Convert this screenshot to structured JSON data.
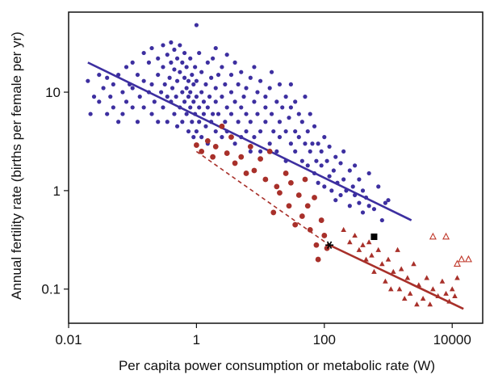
{
  "chart_data": {
    "type": "scatter",
    "title": "",
    "xlabel": "Per capita power consumption or metabolic rate (W)",
    "ylabel": "Annual fertility rate (births per female per yr)",
    "x_scale": "log",
    "y_scale": "log",
    "xlim": [
      0.01,
      30000
    ],
    "ylim": [
      0.045,
      65
    ],
    "x_ticks": [
      0.01,
      1,
      100,
      10000
    ],
    "x_tick_labels": [
      "0.01",
      "1",
      "100",
      "10000"
    ],
    "y_ticks": [
      0.1,
      1,
      10
    ],
    "y_tick_labels": [
      "0.1",
      "1",
      "10"
    ],
    "grid": false,
    "legend": "none",
    "colors": {
      "blue": "#3d2fa0",
      "red": "#a8302a",
      "triangle_open": "#c0392b",
      "black": "#000000"
    },
    "series": [
      {
        "marker": "circle",
        "color": "blue",
        "points": [
          [
            0.02,
            13
          ],
          [
            0.022,
            6
          ],
          [
            0.025,
            9
          ],
          [
            0.03,
            15
          ],
          [
            0.03,
            8
          ],
          [
            0.035,
            11
          ],
          [
            0.04,
            6
          ],
          [
            0.04,
            14
          ],
          [
            0.045,
            9
          ],
          [
            0.05,
            7
          ],
          [
            0.05,
            12
          ],
          [
            0.06,
            15
          ],
          [
            0.06,
            5
          ],
          [
            0.07,
            10
          ],
          [
            0.07,
            6
          ],
          [
            0.08,
            18
          ],
          [
            0.08,
            8
          ],
          [
            0.09,
            12
          ],
          [
            0.1,
            7
          ],
          [
            0.1,
            20
          ],
          [
            0.1,
            11
          ],
          [
            0.12,
            5
          ],
          [
            0.12,
            15
          ],
          [
            0.13,
            9
          ],
          [
            0.15,
            25
          ],
          [
            0.15,
            13
          ],
          [
            0.15,
            7
          ],
          [
            0.18,
            10
          ],
          [
            0.18,
            20
          ],
          [
            0.2,
            6
          ],
          [
            0.2,
            12
          ],
          [
            0.2,
            28
          ],
          [
            0.22,
            8
          ],
          [
            0.25,
            15
          ],
          [
            0.25,
            5
          ],
          [
            0.25,
            22
          ],
          [
            0.28,
            10
          ],
          [
            0.3,
            18
          ],
          [
            0.3,
            7
          ],
          [
            0.3,
            30
          ],
          [
            0.32,
            12
          ],
          [
            0.35,
            9
          ],
          [
            0.35,
            24
          ],
          [
            0.35,
            5
          ],
          [
            0.38,
            14
          ],
          [
            0.4,
            8
          ],
          [
            0.4,
            20
          ],
          [
            0.4,
            32
          ],
          [
            0.42,
            11
          ],
          [
            0.45,
            6
          ],
          [
            0.45,
            17
          ],
          [
            0.45,
            27
          ],
          [
            0.48,
            9
          ],
          [
            0.5,
            13
          ],
          [
            0.5,
            4.5
          ],
          [
            0.5,
            22
          ],
          [
            0.55,
            7
          ],
          [
            0.55,
            16
          ],
          [
            0.55,
            30
          ],
          [
            0.6,
            10
          ],
          [
            0.6,
            5
          ],
          [
            0.6,
            20
          ],
          [
            0.65,
            8
          ],
          [
            0.65,
            14
          ],
          [
            0.65,
            25
          ],
          [
            0.7,
            6
          ],
          [
            0.7,
            11
          ],
          [
            0.7,
            18
          ],
          [
            0.75,
            9
          ],
          [
            0.75,
            4
          ],
          [
            0.75,
            13
          ],
          [
            0.8,
            7
          ],
          [
            0.8,
            22
          ],
          [
            0.8,
            10
          ],
          [
            0.85,
            5
          ],
          [
            0.85,
            15
          ],
          [
            0.9,
            8
          ],
          [
            0.9,
            12
          ],
          [
            0.9,
            3.5
          ],
          [
            0.95,
            6
          ],
          [
            0.95,
            18
          ],
          [
            1.0,
            48
          ],
          [
            1.0,
            9
          ],
          [
            1.0,
            4
          ],
          [
            1.0,
            13
          ],
          [
            1.1,
            7
          ],
          [
            1.1,
            25
          ],
          [
            1.1,
            5
          ],
          [
            1.2,
            10
          ],
          [
            1.2,
            3.5
          ],
          [
            1.2,
            16
          ],
          [
            1.3,
            6
          ],
          [
            1.3,
            8
          ],
          [
            1.4,
            4.5
          ],
          [
            1.4,
            12
          ],
          [
            1.5,
            7
          ],
          [
            1.5,
            20
          ],
          [
            1.5,
            3
          ],
          [
            1.6,
            9
          ],
          [
            1.7,
            5
          ],
          [
            1.7,
            14
          ],
          [
            1.8,
            6
          ],
          [
            1.8,
            22
          ],
          [
            2.0,
            8
          ],
          [
            2.0,
            4
          ],
          [
            2.0,
            11
          ],
          [
            2.0,
            28
          ],
          [
            2.2,
            6
          ],
          [
            2.2,
            15
          ],
          [
            2.5,
            3.5
          ],
          [
            2.5,
            9
          ],
          [
            2.5,
            18
          ],
          [
            2.8,
            5
          ],
          [
            2.8,
            12
          ],
          [
            3.0,
            7
          ],
          [
            3.0,
            24
          ],
          [
            3.0,
            4
          ],
          [
            3.5,
            10
          ],
          [
            3.5,
            6
          ],
          [
            3.5,
            15
          ],
          [
            4.0,
            3
          ],
          [
            4.0,
            8
          ],
          [
            4.0,
            20
          ],
          [
            4.5,
            5
          ],
          [
            4.5,
            12
          ],
          [
            5,
            7
          ],
          [
            5,
            3.5
          ],
          [
            5,
            16
          ],
          [
            5.5,
            9
          ],
          [
            6,
            4
          ],
          [
            6,
            6
          ],
          [
            6,
            11
          ],
          [
            7,
            5
          ],
          [
            7,
            14
          ],
          [
            7,
            2.5
          ],
          [
            8,
            8
          ],
          [
            8,
            3.5
          ],
          [
            8,
            18
          ],
          [
            9,
            6
          ],
          [
            9,
            10
          ],
          [
            10,
            4
          ],
          [
            10,
            13
          ],
          [
            10,
            2.5
          ],
          [
            12,
            7
          ],
          [
            12,
            5
          ],
          [
            12,
            9
          ],
          [
            14,
            3
          ],
          [
            14,
            11
          ],
          [
            15,
            6
          ],
          [
            15,
            16
          ],
          [
            16,
            4
          ],
          [
            18,
            8
          ],
          [
            18,
            2.5
          ],
          [
            20,
            5
          ],
          [
            20,
            12
          ],
          [
            20,
            3.5
          ],
          [
            22,
            7
          ],
          [
            25,
            4
          ],
          [
            25,
            9
          ],
          [
            25,
            2
          ],
          [
            28,
            5.5
          ],
          [
            30,
            3
          ],
          [
            30,
            12
          ],
          [
            30,
            7
          ],
          [
            35,
            4
          ],
          [
            35,
            2.5
          ],
          [
            35,
            8
          ],
          [
            40,
            3.5
          ],
          [
            40,
            6
          ],
          [
            45,
            2
          ],
          [
            45,
            5
          ],
          [
            50,
            9
          ],
          [
            50,
            3
          ],
          [
            55,
            4
          ],
          [
            55,
            1.8
          ],
          [
            60,
            2.5
          ],
          [
            60,
            6
          ],
          [
            65,
            3
          ],
          [
            70,
            1.5
          ],
          [
            70,
            4.5
          ],
          [
            75,
            2
          ],
          [
            80,
            3
          ],
          [
            80,
            1.2
          ],
          [
            90,
            2.5
          ],
          [
            90,
            1.8
          ],
          [
            100,
            1.1
          ],
          [
            100,
            3.5
          ],
          [
            110,
            2
          ],
          [
            120,
            1.4
          ],
          [
            120,
            2.8
          ],
          [
            130,
            1
          ],
          [
            140,
            1.6
          ],
          [
            150,
            2.2
          ],
          [
            150,
            0.8
          ],
          [
            160,
            1.2
          ],
          [
            180,
            1.9
          ],
          [
            180,
            0.9
          ],
          [
            200,
            1.3
          ],
          [
            200,
            2.5
          ],
          [
            220,
            1
          ],
          [
            250,
            0.7
          ],
          [
            250,
            1.6
          ],
          [
            280,
            1.1
          ],
          [
            300,
            0.9
          ],
          [
            300,
            1.8
          ],
          [
            350,
            0.75
          ],
          [
            350,
            1.3
          ],
          [
            400,
            1
          ],
          [
            400,
            0.6
          ],
          [
            450,
            0.85
          ],
          [
            500,
            0.7
          ],
          [
            500,
            1.5
          ],
          [
            600,
            0.65
          ],
          [
            700,
            1.1
          ],
          [
            800,
            0.5
          ],
          [
            900,
            0.75
          ],
          [
            1000,
            0.8
          ]
        ]
      },
      {
        "marker": "circle",
        "color": "red",
        "points": [
          [
            1,
            2.9
          ],
          [
            1.2,
            2.5
          ],
          [
            1.5,
            3.2
          ],
          [
            1.8,
            2.2
          ],
          [
            2,
            2.8
          ],
          [
            2.5,
            4.5
          ],
          [
            3,
            2.4
          ],
          [
            3.5,
            3.5
          ],
          [
            4,
            1.9
          ],
          [
            5,
            2.2
          ],
          [
            6,
            1.5
          ],
          [
            7,
            2.8
          ],
          [
            8,
            1.6
          ],
          [
            10,
            2.1
          ],
          [
            12,
            1.3
          ],
          [
            14,
            2.5
          ],
          [
            16,
            0.6
          ],
          [
            18,
            1.1
          ],
          [
            20,
            0.95
          ],
          [
            25,
            1.5
          ],
          [
            28,
            0.7
          ],
          [
            30,
            1.2
          ],
          [
            35,
            0.45
          ],
          [
            40,
            0.9
          ],
          [
            45,
            0.55
          ],
          [
            50,
            1.3
          ],
          [
            55,
            0.7
          ],
          [
            60,
            0.4
          ],
          [
            70,
            0.85
          ],
          [
            75,
            0.28
          ],
          [
            80,
            0.2
          ],
          [
            90,
            0.5
          ],
          [
            100,
            0.35
          ],
          [
            110,
            0.26
          ]
        ]
      },
      {
        "marker": "triangle",
        "color": "red",
        "points": [
          [
            200,
            0.4
          ],
          [
            250,
            0.3
          ],
          [
            300,
            0.35
          ],
          [
            350,
            0.25
          ],
          [
            400,
            0.28
          ],
          [
            450,
            0.2
          ],
          [
            500,
            0.3
          ],
          [
            550,
            0.22
          ],
          [
            600,
            0.15
          ],
          [
            700,
            0.25
          ],
          [
            800,
            0.18
          ],
          [
            900,
            0.12
          ],
          [
            1000,
            0.2
          ],
          [
            1100,
            0.1
          ],
          [
            1200,
            0.15
          ],
          [
            1400,
            0.25
          ],
          [
            1500,
            0.1
          ],
          [
            1600,
            0.16
          ],
          [
            1800,
            0.08
          ],
          [
            2000,
            0.13
          ],
          [
            2200,
            0.09
          ],
          [
            2500,
            0.18
          ],
          [
            2800,
            0.07
          ],
          [
            3000,
            0.11
          ],
          [
            3500,
            0.08
          ],
          [
            4000,
            0.13
          ],
          [
            4500,
            0.07
          ],
          [
            5000,
            0.1
          ],
          [
            6000,
            0.085
          ],
          [
            7000,
            0.12
          ],
          [
            8000,
            0.09
          ],
          [
            9000,
            0.075
          ],
          [
            10000,
            0.1
          ],
          [
            11000,
            0.085
          ],
          [
            12000,
            0.13
          ]
        ]
      },
      {
        "marker": "triangle-open",
        "color": "triangle_open",
        "points": [
          [
            5000,
            0.34
          ],
          [
            8000,
            0.34
          ],
          [
            12000,
            0.18
          ],
          [
            14000,
            0.2
          ],
          [
            18000,
            0.2
          ]
        ]
      },
      {
        "marker": "square",
        "color": "black",
        "points": [
          [
            600,
            0.34
          ]
        ]
      },
      {
        "marker": "asterisk",
        "color": "black",
        "points": [
          [
            120,
            0.28
          ]
        ]
      }
    ],
    "fit_lines": [
      {
        "color": "blue",
        "style": "solid",
        "x": [
          0.02,
          2300
        ],
        "y": [
          20,
          0.5
        ]
      },
      {
        "color": "red",
        "style": "dashed",
        "x": [
          1,
          120
        ],
        "y": [
          2.5,
          0.28
        ]
      },
      {
        "color": "red",
        "style": "solid",
        "x": [
          120,
          15000
        ],
        "y": [
          0.28,
          0.063
        ]
      }
    ]
  }
}
